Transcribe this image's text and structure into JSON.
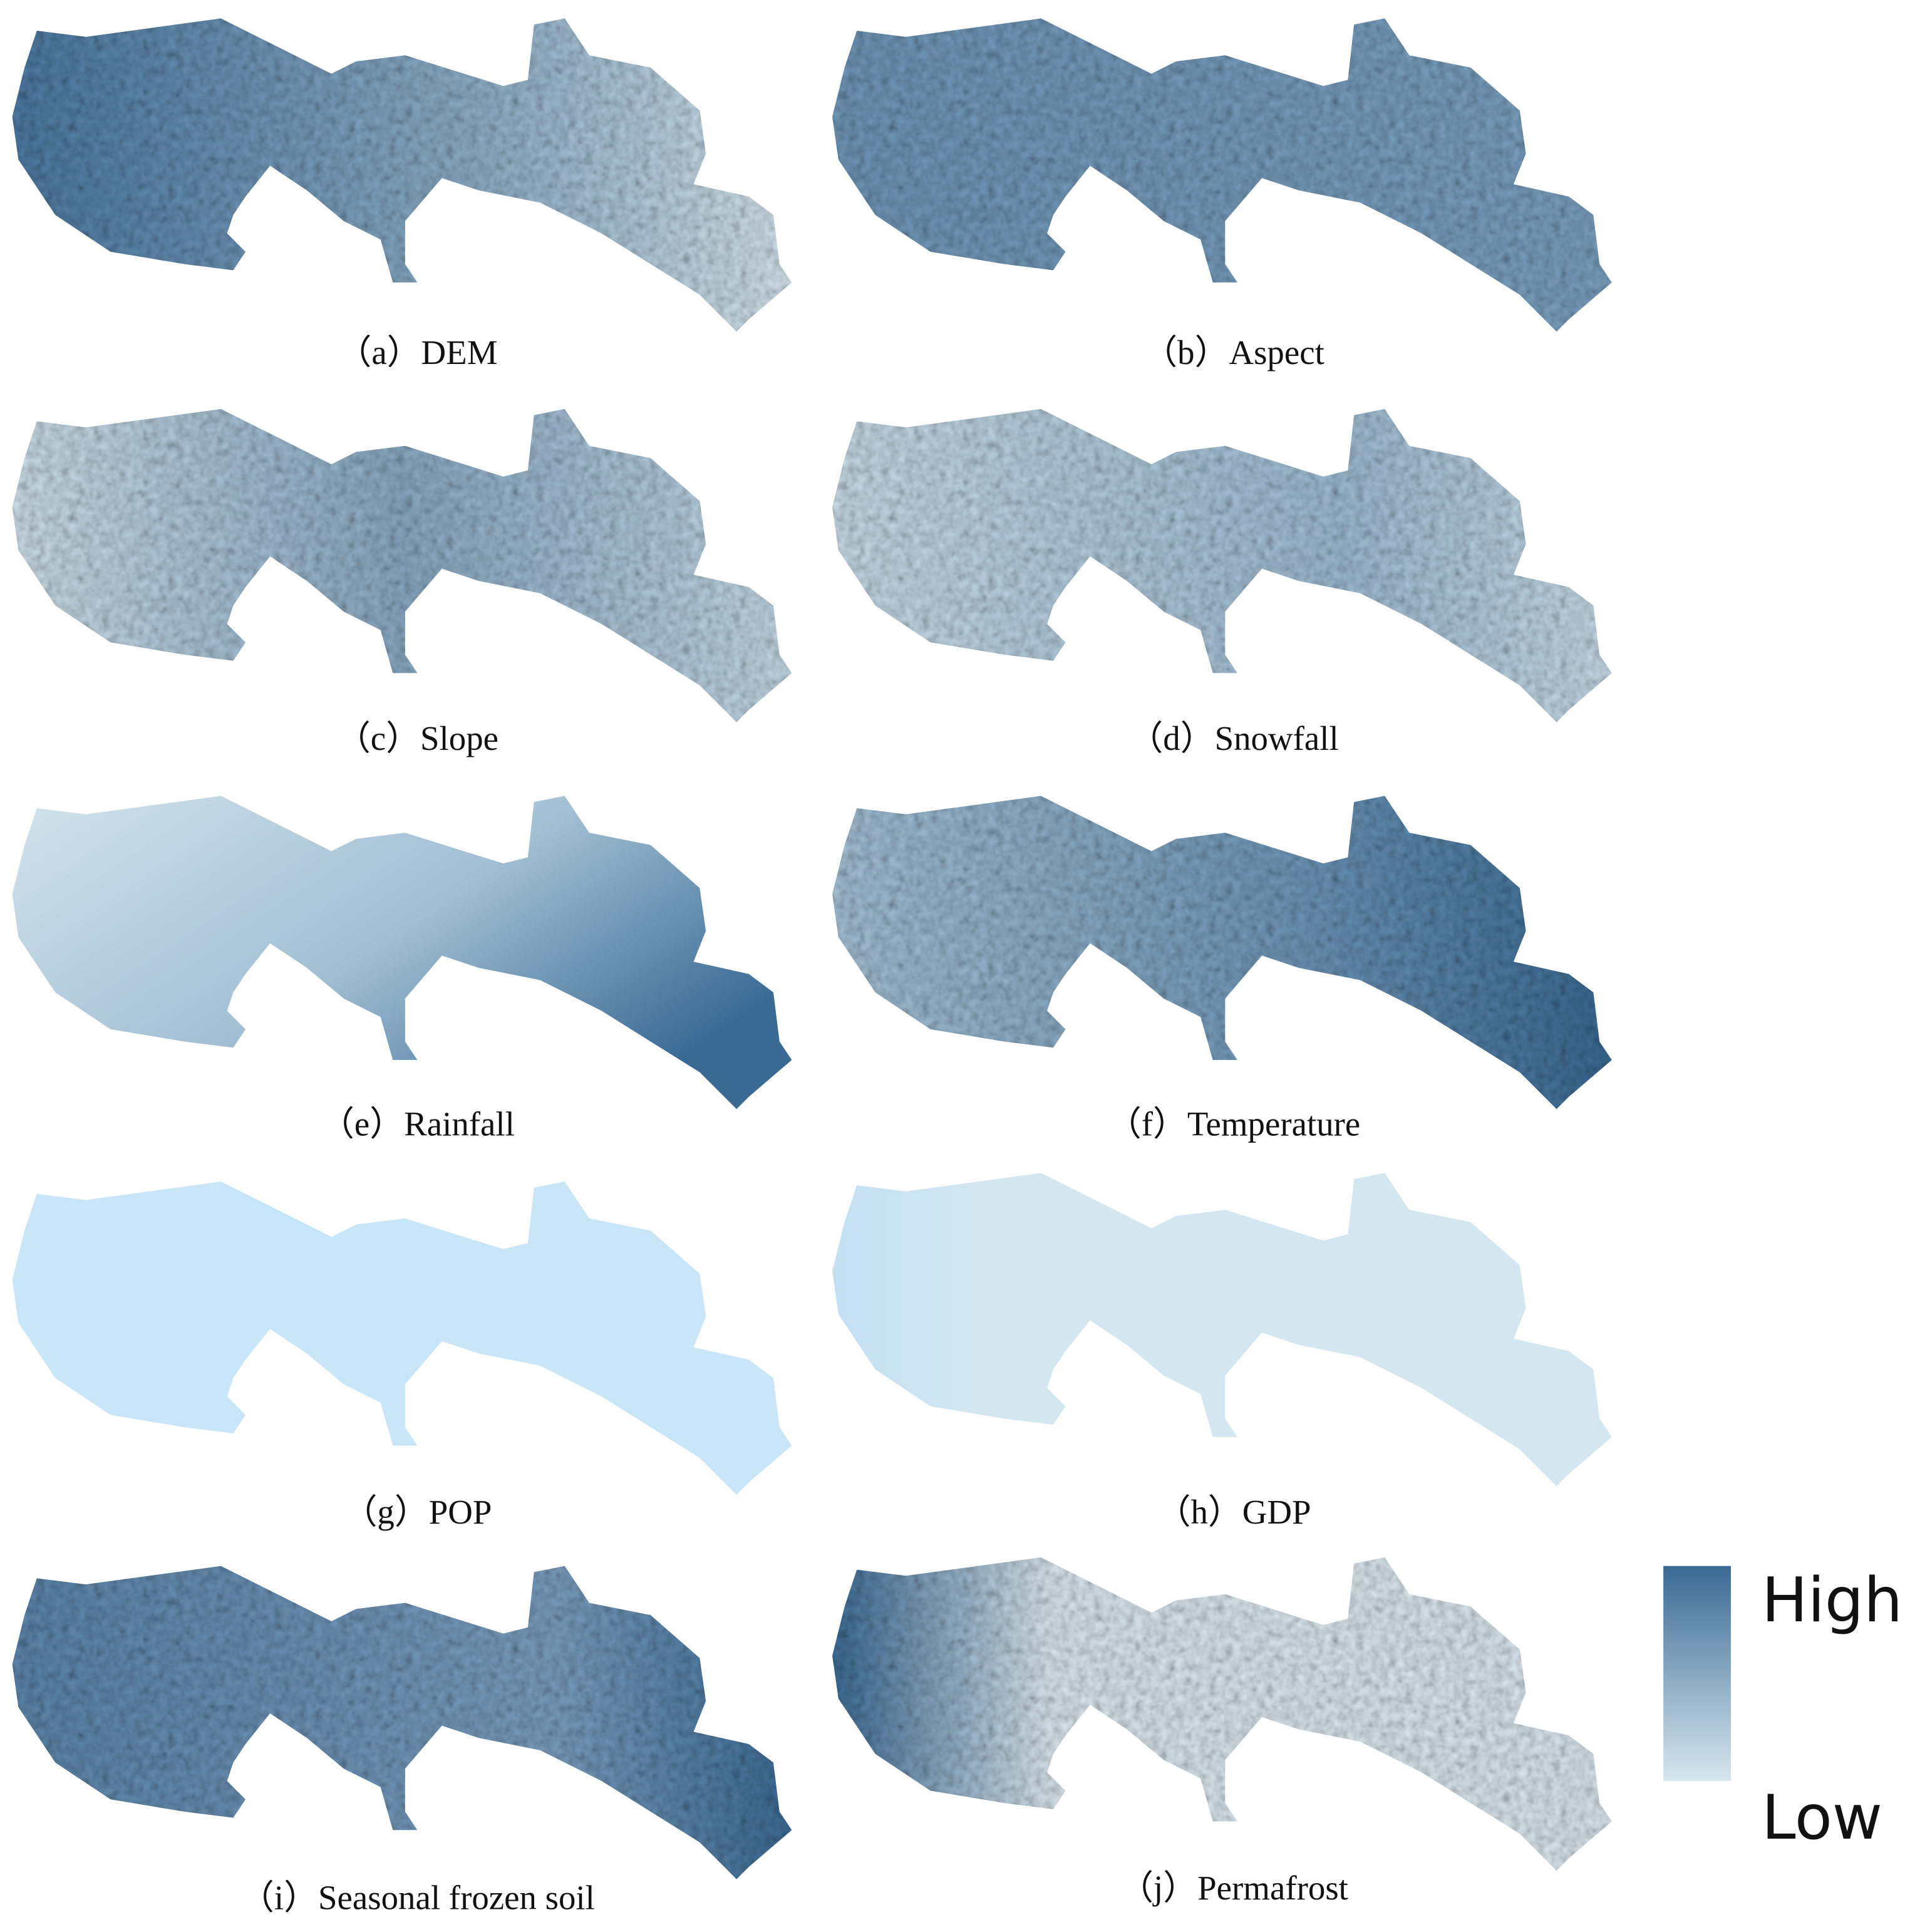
{
  "panels": [
    {
      "caption": "（a）DEM"
    },
    {
      "caption": "（b）Aspect"
    },
    {
      "caption": "（c）Slope"
    },
    {
      "caption": "（d）Snowfall"
    },
    {
      "caption": "（e）Rainfall"
    },
    {
      "caption": "（f）Temperature"
    },
    {
      "caption": "（g）POP"
    },
    {
      "caption": "（h）GDP"
    },
    {
      "caption": "（i）Seasonal frozen soil"
    },
    {
      "caption": "（j）Permafrost"
    }
  ],
  "legend": {
    "high": "High",
    "low": "Low"
  }
}
